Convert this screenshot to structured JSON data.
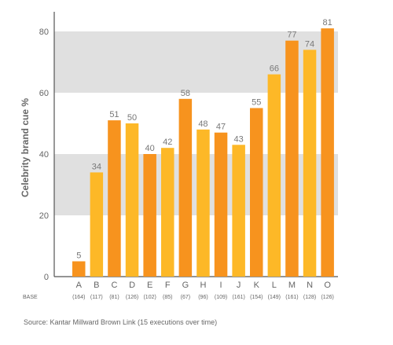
{
  "chart_data": {
    "type": "bar",
    "categories": [
      "A",
      "B",
      "C",
      "D",
      "E",
      "F",
      "G",
      "H",
      "I",
      "J",
      "K",
      "L",
      "M",
      "N",
      "O"
    ],
    "values": [
      5,
      34,
      51,
      50,
      40,
      42,
      58,
      48,
      47,
      43,
      55,
      66,
      77,
      74,
      81
    ],
    "bar_colors": [
      "#F7931E",
      "#FDB827",
      "#F7931E",
      "#FDB827",
      "#F7931E",
      "#FDB827",
      "#F7931E",
      "#FDB827",
      "#F7931E",
      "#FDB827",
      "#F7931E",
      "#FDB827",
      "#F7931E",
      "#FDB827",
      "#F7931E"
    ],
    "ylabel": "Celebrity brand cue %",
    "yticks": [
      0,
      20,
      40,
      60,
      80
    ],
    "ylim": [
      0,
      80
    ],
    "base_label": "BASE",
    "base_values": [
      "(164)",
      "(117)",
      "(81)",
      "(126)",
      "(102)",
      "(85)",
      "(67)",
      "(96)",
      "(109)",
      "(161)",
      "(154)",
      "(149)",
      "(161)",
      "(128)",
      "(126)"
    ],
    "band_color": "#E0E0E0",
    "label_color": "#777777"
  },
  "source": "Source: Kantar Millward Brown Link (15 executions over time)"
}
